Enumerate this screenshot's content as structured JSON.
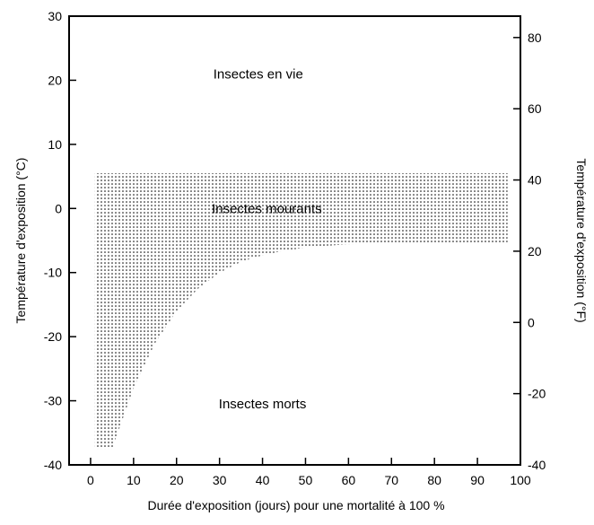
{
  "chart_data": {
    "type": "area",
    "title": "",
    "xlabel": "Durée d'exposition (jours) pour une mortalité à 100 %",
    "ylabel": "Température d'exposition (°C)",
    "y2label": "Température d'exposition (°F)",
    "xlim": [
      -5,
      100
    ],
    "ylim": [
      -40,
      30
    ],
    "y2lim": [
      -40,
      86
    ],
    "x_ticks": [
      "0",
      "10",
      "20",
      "30",
      "40",
      "50",
      "60",
      "70",
      "80",
      "90",
      "100"
    ],
    "y_ticks": [
      "-40",
      "-30",
      "-20",
      "-10",
      "0",
      "10",
      "20",
      "30"
    ],
    "y2_ticks": [
      "-40",
      "-20",
      "0",
      "20",
      "40",
      "60",
      "80"
    ],
    "grid": false,
    "colors": {
      "fill_dots": "#000000",
      "axis": "#000000",
      "background": "#ffffff"
    },
    "annotations": [
      {
        "text": "Insectes en vie",
        "x": 39,
        "y": 21
      },
      {
        "text": "Insectes mourants",
        "x": 41,
        "y": 0
      },
      {
        "text": "Insectes morts",
        "x": 40,
        "y": -30.5
      }
    ],
    "region_top": 5.5,
    "region_upper_curve": {
      "x": [
        1,
        97
      ],
      "y": [
        5.5,
        5.5
      ]
    },
    "region_lower_curve": {
      "x": [
        1,
        5,
        10,
        15,
        20,
        25,
        30,
        35,
        40,
        45,
        50,
        55,
        60,
        65,
        70,
        75,
        80,
        85,
        90,
        95,
        97
      ],
      "y": [
        -37.5,
        -37.5,
        -28,
        -21,
        -16,
        -12.5,
        -10,
        -8.3,
        -7.3,
        -6.6,
        -6.1,
        -5.8,
        -5.6,
        -5.5,
        -5.5,
        -5.5,
        -5.5,
        -5.5,
        -5.5,
        -5.5,
        -5.5
      ]
    }
  }
}
